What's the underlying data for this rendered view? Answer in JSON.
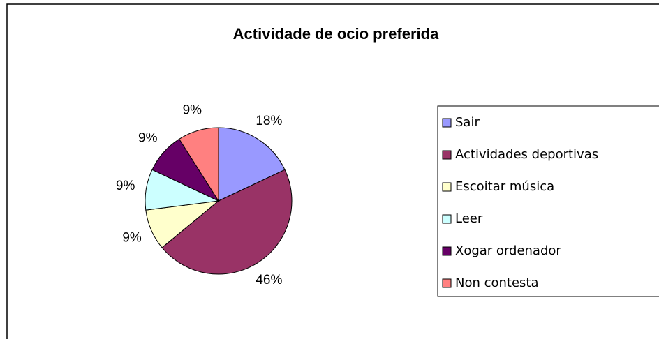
{
  "chart_data": {
    "type": "pie",
    "title": "Actividade de ocio preferida",
    "categories": [
      "Sair",
      "Actividades deportivas",
      "Escoitar música",
      "Leer",
      "Xogar ordenador",
      "Non contesta"
    ],
    "values": [
      18,
      46,
      9,
      9,
      9,
      9
    ],
    "value_labels": [
      "18%",
      "46%",
      "9%",
      "9%",
      "9%",
      "9%"
    ],
    "colors": [
      "#9999ff",
      "#993366",
      "#ffffcc",
      "#ccffff",
      "#660066",
      "#ff8080"
    ],
    "legend": "right"
  }
}
